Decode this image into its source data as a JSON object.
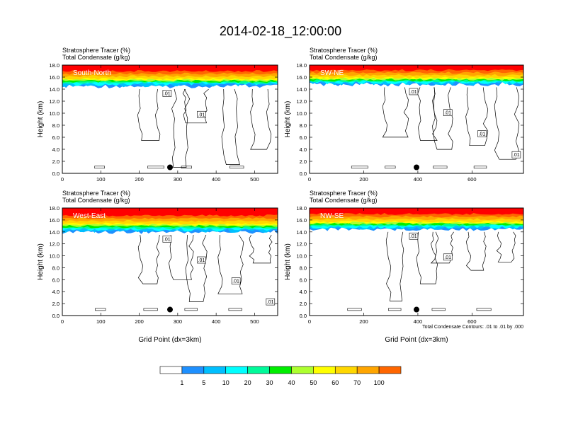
{
  "figure": {
    "title": "2014-02-18_12:00:00",
    "subtitle_left_1": "Stratosphere Tracer   (%)",
    "subtitle_left_2": "Total Condensate   (g/kg)",
    "x_axis_label": "Grid Point (dx=3km)",
    "y_axis_label": "Height (km)",
    "contour_note": "Total Condensate Contours: .01 to .01 by .000"
  },
  "colorbar": {
    "labels": [
      "1",
      "5",
      "10",
      "20",
      "30",
      "40",
      "50",
      "60",
      "70",
      "100"
    ],
    "colors": [
      "#ffffff",
      "#1e90ff",
      "#00bfff",
      "#00ffff",
      "#00fa9a",
      "#00ee00",
      "#adff2f",
      "#ffff00",
      "#ffd700",
      "#ffa500",
      "#ff6600",
      "#ff0000"
    ]
  },
  "chart_data": [
    {
      "type": "heatmap",
      "panel": "South-North",
      "xlim": [
        0,
        560
      ],
      "ylim": [
        0,
        18
      ],
      "xticks": [
        0,
        100,
        200,
        300,
        400,
        500
      ],
      "yticks": [
        "0.0",
        "2.0",
        "4.0",
        "6.0",
        "8.0",
        "10.0",
        "12.0",
        "14.0",
        "16.0",
        "18.0"
      ],
      "tracer_band_base_km": 14.5,
      "dot": {
        "x": 280,
        "y": 1.0
      },
      "contour_labels": [
        ".01",
        ".01"
      ]
    },
    {
      "type": "heatmap",
      "panel": "SW-NE",
      "xlim": [
        0,
        790
      ],
      "ylim": [
        0,
        18
      ],
      "xticks": [
        0,
        200,
        400,
        600
      ],
      "yticks": [
        "0.0",
        "2.0",
        "4.0",
        "6.0",
        "8.0",
        "10.0",
        "12.0",
        "14.0",
        "16.0",
        "18.0"
      ],
      "tracer_band_base_km": 14.8,
      "dot": {
        "x": 395,
        "y": 1.0
      },
      "contour_labels": [
        ".01",
        ".01",
        ".01",
        ".01"
      ]
    },
    {
      "type": "heatmap",
      "panel": "West-East",
      "xlim": [
        0,
        560
      ],
      "ylim": [
        0,
        18
      ],
      "xticks": [
        0,
        100,
        200,
        300,
        400,
        500
      ],
      "yticks": [
        "0.0",
        "2.0",
        "4.0",
        "6.0",
        "8.0",
        "10.0",
        "12.0",
        "14.0",
        "16.0",
        "18.0"
      ],
      "tracer_band_base_km": 14.0,
      "dot": {
        "x": 280,
        "y": 1.0
      },
      "contour_labels": [
        ".01",
        ".01",
        ".01",
        ".01"
      ]
    },
    {
      "type": "heatmap",
      "panel": "NW-SE",
      "xlim": [
        0,
        790
      ],
      "ylim": [
        0,
        18
      ],
      "xticks": [
        0,
        200,
        400,
        600
      ],
      "yticks": [
        "0.0",
        "2.0",
        "4.0",
        "6.0",
        "8.0",
        "10.0",
        "12.0",
        "14.0",
        "16.0",
        "18.0"
      ],
      "tracer_band_base_km": 14.5,
      "dot": {
        "x": 395,
        "y": 1.0
      },
      "contour_labels": [
        ".01",
        ".01"
      ]
    }
  ]
}
